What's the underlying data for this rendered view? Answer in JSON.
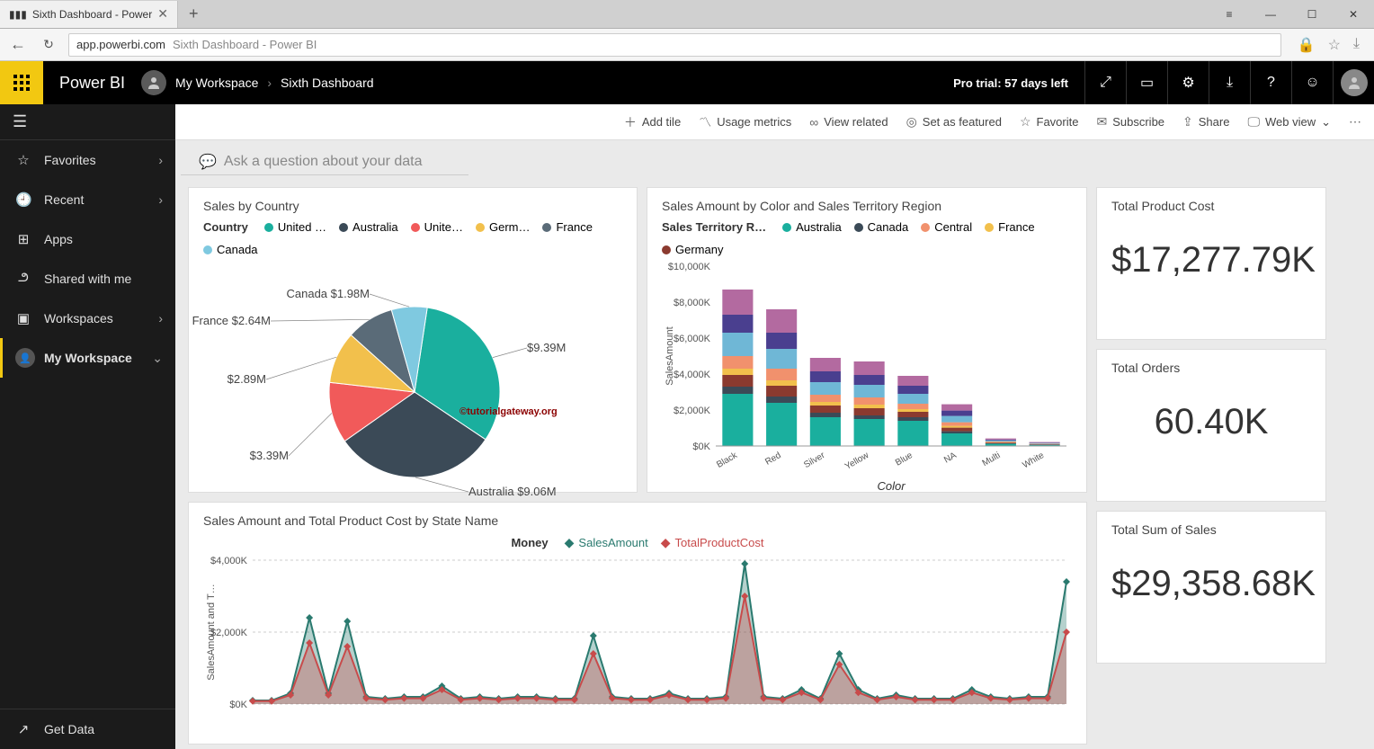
{
  "browser": {
    "tab_title": "Sixth Dashboard - Power",
    "url_domain": "app.powerbi.com",
    "url_path": "Sixth Dashboard - Power BI"
  },
  "pbi_header": {
    "product": "Power BI",
    "breadcrumb_root": "My Workspace",
    "breadcrumb_current": "Sixth Dashboard",
    "trial_text": "Pro trial: 57 days left"
  },
  "toolbar": {
    "add_tile": "Add tile",
    "usage_metrics": "Usage metrics",
    "view_related": "View related",
    "set_featured": "Set as featured",
    "favorite": "Favorite",
    "subscribe": "Subscribe",
    "share": "Share",
    "web_view": "Web view"
  },
  "sidebar": {
    "favorites": "Favorites",
    "recent": "Recent",
    "apps": "Apps",
    "shared": "Shared with me",
    "workspaces": "Workspaces",
    "my_workspace": "My Workspace",
    "get_data": "Get Data"
  },
  "qna_placeholder": "Ask a question about your data",
  "pie_tile": {
    "title": "Sales by Country",
    "legend_title": "Country",
    "watermark": "©tutorialgateway.org",
    "slices": [
      {
        "label": "United …",
        "short": "United",
        "value": 9.39,
        "display": "$9.39M",
        "color": "#1aaf9e"
      },
      {
        "label": "Australia",
        "short": "Australia",
        "value": 9.06,
        "display": "Australia $9.06M",
        "color": "#3b4a57"
      },
      {
        "label": "Unite…",
        "short": "Unite",
        "value": 3.39,
        "display": "$3.39M",
        "color": "#f15a5a"
      },
      {
        "label": "Germ…",
        "short": "Germ",
        "value": 2.89,
        "display": "$2.89M",
        "color": "#f2c04c"
      },
      {
        "label": "France",
        "short": "France",
        "value": 2.64,
        "display": "France $2.64M",
        "color": "#5a6b78"
      },
      {
        "label": "Canada",
        "short": "Canada",
        "value": 1.98,
        "display": "Canada $1.98M",
        "color": "#7fc9e0"
      }
    ]
  },
  "bar_tile": {
    "title": "Sales Amount by Color and Sales Territory Region",
    "legend_title": "Sales Territory R…",
    "ylabel": "SalesAmount",
    "xlabel": "Color",
    "ymax": 10000,
    "ytick_step": 2000,
    "ytick_suffix": "K",
    "regions": [
      {
        "name": "Australia",
        "color": "#1aaf9e"
      },
      {
        "name": "Canada",
        "color": "#3b4a57"
      },
      {
        "name": "Central",
        "color": "#f1916d"
      },
      {
        "name": "France",
        "color": "#f2c04c"
      },
      {
        "name": "Germany",
        "color": "#8b3a2f"
      }
    ],
    "extra_colors": {
      "northeast": "#6fb7d6",
      "southwest": "#b36aa0",
      "northwest": "#4a3f8f"
    },
    "categories": [
      "Black",
      "Red",
      "Silver",
      "Yellow",
      "Blue",
      "NA",
      "Multi",
      "White"
    ],
    "stacks": [
      [
        2900,
        400,
        650,
        350,
        700,
        1300,
        1000,
        1400
      ],
      [
        2400,
        350,
        600,
        300,
        650,
        1100,
        900,
        1300
      ],
      [
        1600,
        250,
        400,
        200,
        400,
        700,
        600,
        750
      ],
      [
        1500,
        200,
        400,
        200,
        400,
        700,
        550,
        750
      ],
      [
        1400,
        200,
        300,
        150,
        300,
        550,
        450,
        550
      ],
      [
        700,
        120,
        200,
        100,
        200,
        350,
        300,
        350
      ],
      [
        120,
        30,
        40,
        20,
        40,
        60,
        50,
        60
      ],
      [
        60,
        20,
        20,
        10,
        20,
        30,
        30,
        30
      ]
    ],
    "stack_palette": [
      "#1aaf9e",
      "#3b4a57",
      "#8b3a2f",
      "#f2c04c",
      "#f1916d",
      "#6fb7d6",
      "#4a3f8f",
      "#b36aa0"
    ]
  },
  "line_tile": {
    "title": "Sales Amount and Total Product Cost by State Name",
    "legend_title": "Money",
    "ylabel": "SalesAmount and T…",
    "series": [
      {
        "name": "SalesAmount",
        "color": "#2a7a6f",
        "marker": "diamond"
      },
      {
        "name": "TotalProductCost",
        "color": "#c84b4b",
        "marker": "diamond"
      }
    ],
    "ymax": 4000,
    "ytick_step": 2000,
    "ytick_suffix": "K",
    "points_sales": [
      100,
      100,
      300,
      2400,
      300,
      2300,
      200,
      150,
      200,
      200,
      500,
      150,
      200,
      150,
      200,
      200,
      150,
      150,
      1900,
      200,
      150,
      150,
      300,
      150,
      150,
      200,
      3900,
      200,
      150,
      400,
      150,
      1400,
      400,
      150,
      250,
      150,
      150,
      150,
      400,
      200,
      150,
      200,
      200,
      3400
    ],
    "points_cost": [
      80,
      80,
      250,
      1700,
      250,
      1600,
      160,
      120,
      160,
      160,
      400,
      120,
      160,
      120,
      160,
      160,
      120,
      120,
      1400,
      160,
      120,
      120,
      250,
      120,
      120,
      160,
      3000,
      160,
      120,
      320,
      120,
      1100,
      320,
      120,
      200,
      120,
      120,
      120,
      320,
      160,
      120,
      160,
      160,
      2000
    ]
  },
  "kpi": {
    "cost_title": "Total Product Cost",
    "cost_value": "$17,277.79K",
    "orders_title": "Total Orders",
    "orders_value": "60.40K",
    "sales_title": "Total Sum of Sales",
    "sales_value": "$29,358.68K"
  }
}
